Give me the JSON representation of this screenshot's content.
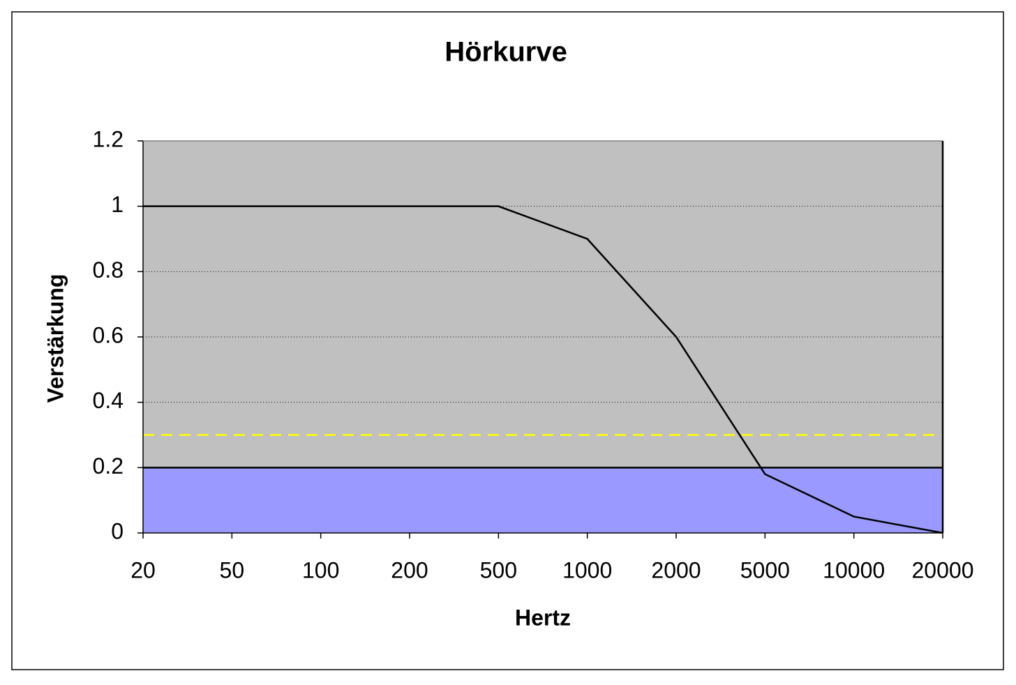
{
  "chart_data": {
    "type": "line",
    "title": "Hörkurve",
    "x_label": "Hertz",
    "y_label": "Verstärkung",
    "categories": [
      "20",
      "50",
      "100",
      "200",
      "500",
      "1000",
      "2000",
      "5000",
      "10000",
      "20000"
    ],
    "series": [
      {
        "type": "area",
        "color": "#9999ff",
        "values": [
          0.2,
          0.2,
          0.2,
          0.2,
          0.2,
          0.2,
          0.2,
          0.2,
          0.2,
          0.2
        ]
      },
      {
        "type": "dashed",
        "color": "#ffff00",
        "values": [
          0.3,
          0.3,
          0.3,
          0.3,
          0.3,
          0.3,
          0.3,
          0.3,
          0.3,
          0.3
        ]
      },
      {
        "type": "line",
        "color": "#000000",
        "values": [
          1,
          1,
          1,
          1,
          1,
          0.9,
          0.6,
          0.18,
          0.05,
          0
        ]
      }
    ],
    "ylim": [
      0,
      1.2
    ],
    "yticks": [
      0,
      0.2,
      0.4,
      0.6,
      0.8,
      1,
      1.2
    ],
    "grid": true,
    "plot_background": "#c0c0c0"
  }
}
